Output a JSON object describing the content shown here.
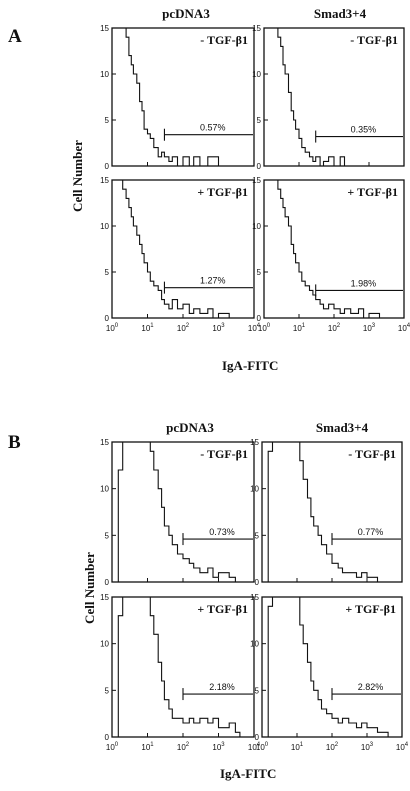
{
  "figure": {
    "panel_a_label": "A",
    "panel_b_label": "B",
    "col_titles": [
      "pcDNA3",
      "Smad3+4"
    ],
    "ylabel": "Cell Number",
    "xlabel": "IgA-FITC",
    "y_ticks": [
      "0",
      "5",
      "10",
      "15"
    ],
    "x_ticks": [
      {
        "base": "10",
        "exp": "0"
      },
      {
        "base": "10",
        "exp": "1"
      },
      {
        "base": "10",
        "exp": "2"
      },
      {
        "base": "10",
        "exp": "3"
      },
      {
        "base": "10",
        "exp": "4"
      }
    ]
  },
  "chart_data": [
    {
      "type": "line",
      "panel": "A",
      "column": "pcDNA3",
      "condition": "- TGF-β1",
      "gate_pct": "0.57%",
      "x_scale": "log",
      "xlim": [
        1,
        10000
      ],
      "ylim": [
        0,
        15
      ],
      "x": [
        1,
        1.5,
        2,
        2.5,
        3,
        3.5,
        4,
        5,
        6,
        7,
        8,
        10,
        12,
        15,
        20,
        25,
        30,
        40,
        50,
        70,
        100,
        150,
        200,
        300,
        500,
        1000
      ],
      "y": [
        15,
        15,
        15,
        14,
        12,
        11,
        10,
        9,
        7,
        6,
        4,
        3.5,
        3,
        2,
        1,
        1.5,
        1,
        0.5,
        1,
        0,
        1,
        0,
        1,
        0,
        1,
        0
      ],
      "gate_range": [
        30,
        10000
      ],
      "gate_y": 3.4
    },
    {
      "type": "line",
      "panel": "A",
      "column": "Smad3+4",
      "condition": "- TGF-β1",
      "gate_pct": "0.35%",
      "x_scale": "log",
      "xlim": [
        1,
        10000
      ],
      "ylim": [
        0,
        15
      ],
      "x": [
        1,
        1.5,
        2,
        2.5,
        3,
        3.5,
        4,
        5,
        6,
        7,
        8,
        10,
        12,
        15,
        20,
        25,
        30,
        40,
        50,
        70,
        100,
        150,
        200,
        300
      ],
      "y": [
        15,
        15,
        15,
        14,
        13,
        11,
        10,
        8,
        6,
        5,
        4,
        3,
        2,
        1.5,
        1,
        0.5,
        1,
        0,
        0.5,
        1,
        0,
        1,
        0,
        0
      ],
      "gate_range": [
        30,
        10000
      ],
      "gate_y": 3.2
    },
    {
      "type": "line",
      "panel": "A",
      "column": "pcDNA3",
      "condition": "+ TGF-β1",
      "gate_pct": "1.27%",
      "x_scale": "log",
      "xlim": [
        1,
        10000
      ],
      "ylim": [
        0,
        15
      ],
      "x": [
        1,
        1.5,
        2,
        2.5,
        3,
        3.5,
        4,
        5,
        6,
        7,
        8,
        10,
        12,
        15,
        20,
        25,
        30,
        40,
        50,
        70,
        100,
        150,
        200,
        300,
        500,
        700,
        1000,
        2000
      ],
      "y": [
        15,
        15,
        14,
        13,
        12,
        11,
        10,
        9,
        8,
        7,
        6,
        5,
        4,
        3.5,
        3,
        2,
        1.5,
        1,
        2,
        1,
        1.5,
        0.5,
        1,
        0.5,
        1,
        0,
        0.5,
        0
      ],
      "gate_range": [
        30,
        10000
      ],
      "gate_y": 3.3
    },
    {
      "type": "line",
      "panel": "A",
      "column": "Smad3+4",
      "condition": "+ TGF-β1",
      "gate_pct": "1.98%",
      "x_scale": "log",
      "xlim": [
        1,
        10000
      ],
      "ylim": [
        0,
        15
      ],
      "x": [
        1,
        1.5,
        2,
        2.5,
        3,
        3.5,
        4,
        5,
        6,
        7,
        8,
        10,
        12,
        15,
        20,
        25,
        30,
        40,
        50,
        70,
        100,
        150,
        200,
        300,
        500,
        700,
        1000,
        2000
      ],
      "y": [
        15,
        15,
        15,
        14,
        13,
        12,
        11,
        10,
        8,
        7,
        6,
        5,
        4,
        3.5,
        3,
        2.5,
        2,
        1.5,
        1,
        1.5,
        1,
        0.5,
        1,
        0.5,
        1,
        0,
        0.5,
        0
      ],
      "gate_range": [
        30,
        10000
      ],
      "gate_y": 3.0
    },
    {
      "type": "line",
      "panel": "B",
      "column": "pcDNA3",
      "condition": "- TGF-β1",
      "gate_pct": "0.73%",
      "x_scale": "log",
      "xlim": [
        1,
        10000
      ],
      "ylim": [
        0,
        15
      ],
      "x": [
        1,
        1.5,
        2,
        3,
        5,
        7,
        10,
        12,
        15,
        20,
        25,
        30,
        40,
        50,
        70,
        100,
        150,
        200,
        300,
        500,
        700,
        1000,
        2000,
        3000
      ],
      "y": [
        0,
        12,
        15,
        15,
        15,
        15,
        15,
        14,
        12,
        10,
        8,
        6,
        5,
        4,
        3,
        2.5,
        2,
        1.5,
        1,
        1.5,
        0.5,
        1,
        0.5,
        0
      ],
      "gate_range": [
        100,
        10000
      ],
      "gate_y": 4.6
    },
    {
      "type": "line",
      "panel": "B",
      "column": "Smad3+4",
      "condition": "- TGF-β1",
      "gate_pct": "0.77%",
      "x_scale": "log",
      "xlim": [
        1,
        10000
      ],
      "ylim": [
        0,
        15
      ],
      "x": [
        1,
        1.5,
        2,
        3,
        5,
        7,
        10,
        12,
        15,
        20,
        25,
        30,
        40,
        50,
        70,
        100,
        150,
        200,
        300,
        500,
        700,
        1000,
        2000,
        3000
      ],
      "y": [
        0,
        14,
        15,
        15,
        15,
        15,
        15,
        13,
        11,
        9,
        7,
        6,
        5,
        4,
        3,
        2,
        1.5,
        1,
        1,
        0.5,
        1,
        0.5,
        0,
        0
      ],
      "gate_range": [
        100,
        10000
      ],
      "gate_y": 4.6
    },
    {
      "type": "line",
      "panel": "B",
      "column": "pcDNA3",
      "condition": "+ TGF-β1",
      "gate_pct": "2.18%",
      "x_scale": "log",
      "xlim": [
        1,
        10000
      ],
      "ylim": [
        0,
        15
      ],
      "x": [
        1,
        1.5,
        2,
        3,
        5,
        7,
        10,
        12,
        15,
        20,
        25,
        30,
        40,
        50,
        70,
        100,
        150,
        200,
        300,
        500,
        700,
        1000,
        2000,
        3000,
        4000
      ],
      "y": [
        0,
        13,
        15,
        15,
        15,
        15,
        15,
        13,
        11,
        8,
        6,
        4,
        3,
        2,
        2,
        1.5,
        2,
        1.5,
        2,
        1.5,
        2,
        1,
        1.5,
        0.5,
        0
      ],
      "gate_range": [
        100,
        10000
      ],
      "gate_y": 4.6
    },
    {
      "type": "line",
      "panel": "B",
      "column": "Smad3+4",
      "condition": "+ TGF-β1",
      "gate_pct": "2.82%",
      "x_scale": "log",
      "xlim": [
        1,
        10000
      ],
      "ylim": [
        0,
        15
      ],
      "x": [
        1,
        1.5,
        2,
        3,
        5,
        7,
        10,
        12,
        15,
        20,
        25,
        30,
        40,
        50,
        70,
        100,
        150,
        200,
        300,
        500,
        700,
        1000,
        2000,
        3000,
        4000
      ],
      "y": [
        0,
        14,
        15,
        15,
        15,
        15,
        15,
        12,
        10,
        8,
        6,
        5,
        4,
        3,
        2.5,
        2,
        1.5,
        2,
        1.5,
        1,
        1.5,
        1,
        0.5,
        0.5,
        0
      ],
      "gate_range": [
        100,
        10000
      ],
      "gate_y": 4.6
    }
  ]
}
